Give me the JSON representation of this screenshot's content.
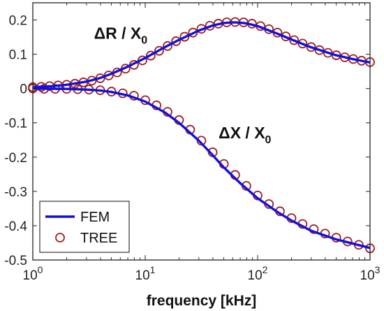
{
  "chart_data": {
    "type": "line",
    "xlabel": "frequency [kHz]",
    "ylabel": "",
    "xscale": "log",
    "xlim": [
      1,
      1000
    ],
    "ylim": [
      -0.5,
      0.25
    ],
    "grid": false,
    "legend_position": "bottom-left",
    "x_ticks": [
      {
        "value": 1,
        "base": "10",
        "exp": "0"
      },
      {
        "value": 10,
        "base": "10",
        "exp": "1"
      },
      {
        "value": 100,
        "base": "10",
        "exp": "2"
      },
      {
        "value": 1000,
        "base": "10",
        "exp": "3"
      }
    ],
    "y_ticks": [
      {
        "value": 0.2,
        "label": "0.2"
      },
      {
        "value": 0.1,
        "label": "0.1"
      },
      {
        "value": 0,
        "label": "0"
      },
      {
        "value": -0.1,
        "label": "-0.1"
      },
      {
        "value": -0.2,
        "label": "-0.2"
      },
      {
        "value": -0.3,
        "label": "-0.3"
      },
      {
        "value": -0.4,
        "label": "-0.4"
      },
      {
        "value": -0.5,
        "label": "-0.5"
      }
    ],
    "legend": [
      {
        "label": "FEM",
        "style": "line"
      },
      {
        "label": "TREE",
        "style": "marker"
      }
    ],
    "colors": {
      "fem": "#1010e0",
      "tree": "#a02020",
      "axis": "#222222"
    },
    "annotations": [
      {
        "prefix": "ΔR / X",
        "sub": "0",
        "x": 3.5,
        "y": 0.145
      },
      {
        "prefix": "ΔX / X",
        "sub": "0",
        "x": 45,
        "y": -0.145
      }
    ],
    "series": [
      {
        "name": "FEM",
        "style": "line",
        "curves": [
          {
            "id": "dR",
            "x": [
              1,
              1.5,
              2,
              3,
              4,
              5,
              7,
              10,
              15,
              20,
              30,
              40,
              50,
              60,
              70,
              80,
              100,
              150,
              200,
              300,
              500,
              700,
              1000
            ],
            "y": [
              0.004,
              0.007,
              0.011,
              0.02,
              0.031,
              0.043,
              0.064,
              0.089,
              0.121,
              0.142,
              0.169,
              0.184,
              0.191,
              0.193,
              0.192,
              0.19,
              0.182,
              0.16,
              0.143,
              0.12,
              0.097,
              0.086,
              0.076
            ]
          },
          {
            "id": "dX",
            "x": [
              1,
              2,
              3,
              4,
              5,
              7,
              10,
              15,
              20,
              30,
              40,
              50,
              70,
              100,
              150,
              200,
              300,
              500,
              700,
              1000
            ],
            "y": [
              0.0,
              -0.001,
              -0.003,
              -0.006,
              -0.01,
              -0.02,
              -0.038,
              -0.07,
              -0.1,
              -0.152,
              -0.195,
              -0.23,
              -0.276,
              -0.32,
              -0.36,
              -0.385,
              -0.415,
              -0.44,
              -0.452,
              -0.465
            ]
          }
        ]
      },
      {
        "name": "TREE",
        "style": "marker",
        "curves": [
          {
            "id": "dR",
            "x": [
              1,
              1.19,
              1.41,
              1.68,
              2,
              2.37,
              2.82,
              3.35,
              3.98,
              4.73,
              5.62,
              6.68,
              7.94,
              9.44,
              11.2,
              13.3,
              15.8,
              18.8,
              22.4,
              26.6,
              31.6,
              37.6,
              44.7,
              53.1,
              63.1,
              75,
              89.1,
              106,
              126,
              150,
              178,
              211,
              251,
              299,
              355,
              422,
              501,
              596,
              708,
              841,
              1000
            ],
            "y": [
              0.004,
              0.005,
              0.007,
              0.009,
              0.011,
              0.014,
              0.018,
              0.023,
              0.03,
              0.038,
              0.047,
              0.058,
              0.069,
              0.082,
              0.096,
              0.11,
              0.124,
              0.138,
              0.151,
              0.163,
              0.174,
              0.183,
              0.189,
              0.193,
              0.194,
              0.193,
              0.189,
              0.182,
              0.173,
              0.163,
              0.152,
              0.141,
              0.131,
              0.121,
              0.112,
              0.104,
              0.097,
              0.091,
              0.086,
              0.081,
              0.077
            ]
          },
          {
            "id": "dX",
            "x": [
              1,
              1.26,
              1.58,
              2,
              2.51,
              3.16,
              3.98,
              5.01,
              6.31,
              7.94,
              10,
              12.6,
              15.8,
              20,
              25.1,
              31.6,
              39.8,
              50.1,
              63.1,
              79.4,
              100,
              126,
              158,
              200,
              251,
              316,
              398,
              501,
              631,
              794,
              1000
            ],
            "y": [
              0.0,
              -0.001,
              -0.001,
              -0.001,
              -0.002,
              -0.003,
              -0.005,
              -0.009,
              -0.014,
              -0.021,
              -0.034,
              -0.049,
              -0.068,
              -0.092,
              -0.12,
              -0.152,
              -0.186,
              -0.22,
              -0.252,
              -0.284,
              -0.312,
              -0.337,
              -0.358,
              -0.378,
              -0.395,
              -0.41,
              -0.423,
              -0.435,
              -0.446,
              -0.456,
              -0.466
            ]
          }
        ]
      }
    ]
  }
}
